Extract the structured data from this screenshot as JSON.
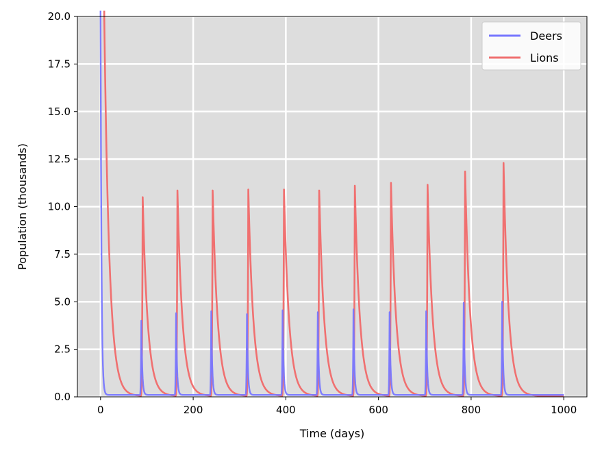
{
  "chart_data": {
    "type": "line",
    "xlabel": "Time (days)",
    "ylabel": "Population (thousands)",
    "xlim": [
      -50,
      1050
    ],
    "ylim": [
      0,
      20
    ],
    "xticks": [
      0,
      200,
      400,
      600,
      800,
      1000
    ],
    "yticks": [
      0.0,
      2.5,
      5.0,
      7.5,
      10.0,
      12.5,
      15.0,
      17.5,
      20.0
    ],
    "xtick_labels": [
      "0",
      "200",
      "400",
      "600",
      "800",
      "1000"
    ],
    "ytick_labels": [
      "0.0",
      "2.5",
      "5.0",
      "7.5",
      "10.0",
      "12.5",
      "15.0",
      "17.5",
      "20.0"
    ],
    "grid": true,
    "background": "#dddddd",
    "grid_color": "#ffffff",
    "legend_position": "top-right",
    "series": [
      {
        "name": "Deers",
        "color": "#7777ff",
        "initial": {
          "x": 0,
          "y": 20.0
        },
        "baseline": 0.1,
        "peaks": [
          {
            "x": 88,
            "y": 4.0
          },
          {
            "x": 163,
            "y": 4.4
          },
          {
            "x": 239,
            "y": 4.5
          },
          {
            "x": 316,
            "y": 4.35
          },
          {
            "x": 393,
            "y": 4.55
          },
          {
            "x": 469,
            "y": 4.45
          },
          {
            "x": 546,
            "y": 4.6
          },
          {
            "x": 624,
            "y": 4.45
          },
          {
            "x": 703,
            "y": 4.5
          },
          {
            "x": 784,
            "y": 4.95
          },
          {
            "x": 867,
            "y": 5.0
          }
        ]
      },
      {
        "name": "Lions",
        "color": "#f07070",
        "initial": {
          "x": 8,
          "y": 20.0
        },
        "baseline": 0.05,
        "peaks": [
          {
            "x": 91,
            "y": 10.5
          },
          {
            "x": 166,
            "y": 10.85
          },
          {
            "x": 242,
            "y": 10.85
          },
          {
            "x": 319,
            "y": 10.9
          },
          {
            "x": 396,
            "y": 10.9
          },
          {
            "x": 472,
            "y": 10.85
          },
          {
            "x": 549,
            "y": 11.1
          },
          {
            "x": 627,
            "y": 11.25
          },
          {
            "x": 706,
            "y": 11.15
          },
          {
            "x": 787,
            "y": 11.85
          },
          {
            "x": 870,
            "y": 12.3
          }
        ]
      }
    ],
    "x_end": 1000
  }
}
